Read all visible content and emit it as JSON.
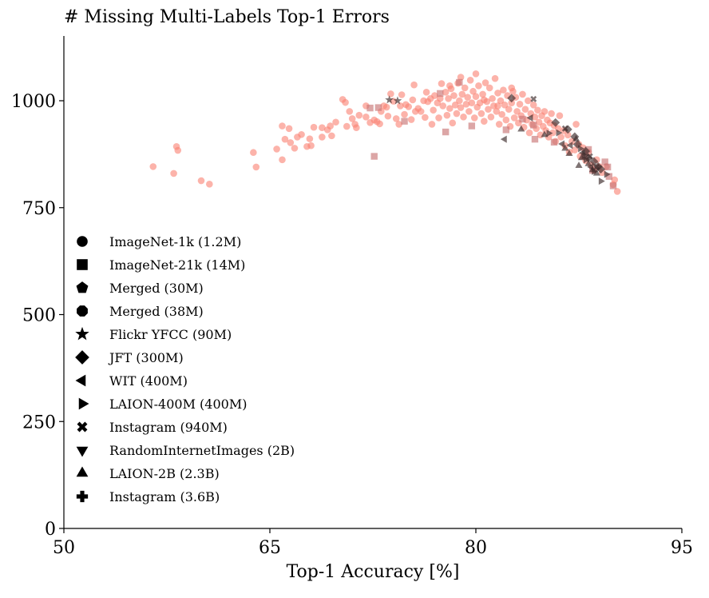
{
  "chart_data": {
    "type": "scatter",
    "title": "# Missing Multi-Labels Top-1 Errors",
    "xlabel": "Top-1 Accuracy [%]",
    "ylabel": "",
    "xlim": [
      50,
      95
    ],
    "ylim": [
      0,
      1150
    ],
    "xticks": [
      50,
      65,
      80,
      95
    ],
    "yticks": [
      0,
      250,
      500,
      750,
      1000
    ],
    "grid": false,
    "legend_position": "lower-left",
    "colors": {
      "imagenet": "#fa8072",
      "other": "#3a2a2a"
    },
    "legend": [
      {
        "label": "ImageNet-1k (1.2M)",
        "marker": "circle"
      },
      {
        "label": "ImageNet-21k (14M)",
        "marker": "square"
      },
      {
        "label": "Merged (30M)",
        "marker": "pentagon"
      },
      {
        "label": "Merged (38M)",
        "marker": "octagon"
      },
      {
        "label": "Flickr YFCC (90M)",
        "marker": "star"
      },
      {
        "label": "JFT (300M)",
        "marker": "diamond"
      },
      {
        "label": "WIT (400M)",
        "marker": "triangle-left"
      },
      {
        "label": "LAION-400M (400M)",
        "marker": "triangle-right"
      },
      {
        "label": "Instagram (940M)",
        "marker": "x"
      },
      {
        "label": "RandomInternetImages (2B)",
        "marker": "triangle-down"
      },
      {
        "label": "LAION-2B (2.3B)",
        "marker": "triangle-up"
      },
      {
        "label": "Instagram (3.6B)",
        "marker": "plus"
      }
    ],
    "series": [
      {
        "marker": "circle",
        "color": "#fa8072",
        "points": [
          [
            56.5,
            846
          ],
          [
            58,
            830
          ],
          [
            58.2,
            893
          ],
          [
            58.3,
            884
          ],
          [
            60,
            813
          ],
          [
            60.6,
            805
          ],
          [
            63.8,
            879
          ],
          [
            64,
            845
          ],
          [
            65.5,
            887
          ],
          [
            65.9,
            941
          ],
          [
            65.9,
            862
          ],
          [
            66.1,
            910
          ],
          [
            66.4,
            935
          ],
          [
            66.5,
            902
          ],
          [
            66.8,
            889
          ],
          [
            67,
            915
          ],
          [
            67.3,
            921
          ],
          [
            67.7,
            893
          ],
          [
            67.9,
            911
          ],
          [
            68,
            895
          ],
          [
            68.2,
            938
          ],
          [
            68.8,
            937
          ],
          [
            68.8,
            915
          ],
          [
            69.2,
            932
          ],
          [
            69.4,
            941
          ],
          [
            69.5,
            918
          ],
          [
            69.8,
            950
          ],
          [
            70.3,
            1003
          ],
          [
            70.5,
            996
          ],
          [
            70.6,
            940
          ],
          [
            70.8,
            975
          ],
          [
            71,
            958
          ],
          [
            71.2,
            945
          ],
          [
            71.3,
            937
          ],
          [
            71.5,
            966
          ],
          [
            72,
            988
          ],
          [
            72,
            962
          ],
          [
            72.3,
            949
          ],
          [
            72.6,
            955
          ],
          [
            72.8,
            951
          ],
          [
            73,
            946
          ],
          [
            73.1,
            975
          ],
          [
            73.3,
            988
          ],
          [
            73.5,
            985
          ],
          [
            73.6,
            964
          ],
          [
            73.8,
            1016
          ],
          [
            74,
            999
          ],
          [
            74.2,
            958
          ],
          [
            74.4,
            945
          ],
          [
            74.5,
            988
          ],
          [
            74.6,
            1014
          ],
          [
            74.9,
            991
          ],
          [
            75.1,
            986
          ],
          [
            75.3,
            956
          ],
          [
            75.4,
            1002
          ],
          [
            75.5,
            1037
          ],
          [
            75.8,
            982
          ],
          [
            76,
            975
          ],
          [
            76.2,
            1000
          ],
          [
            76.3,
            961
          ],
          [
            76.5,
            998
          ],
          [
            76.7,
            1005
          ],
          [
            76.9,
            978
          ],
          [
            77,
            1012
          ],
          [
            77.2,
            995
          ],
          [
            77.3,
            960
          ],
          [
            77.5,
            1040
          ],
          [
            77.6,
            988
          ],
          [
            77.8,
            1020
          ],
          [
            77.9,
            966
          ],
          [
            78,
            1005
          ],
          [
            78.1,
            982
          ],
          [
            78.2,
            1028
          ],
          [
            78.3,
            948
          ],
          [
            78.4,
            1012
          ],
          [
            78.5,
            990
          ],
          [
            78.6,
            970
          ],
          [
            78.7,
            1041
          ],
          [
            78.8,
            1000
          ],
          [
            78.9,
            984
          ],
          [
            79,
            1015
          ],
          [
            79.1,
            962
          ],
          [
            79.2,
            1030
          ],
          [
            79.3,
            992
          ],
          [
            79.4,
            1008
          ],
          [
            79.5,
            975
          ],
          [
            79.6,
            1048
          ],
          [
            79.7,
            995
          ],
          [
            79.8,
            1022
          ],
          [
            79.9,
            960
          ],
          [
            80,
            1063
          ],
          [
            80,
            1010
          ],
          [
            80.1,
            985
          ],
          [
            80.2,
            1035
          ],
          [
            80.3,
            995
          ],
          [
            80.4,
            970
          ],
          [
            80.5,
            1015
          ],
          [
            80.6,
            952
          ],
          [
            80.7,
            1042
          ],
          [
            80.8,
            998
          ],
          [
            80.9,
            980
          ],
          [
            81,
            1030
          ],
          [
            81.1,
            962
          ],
          [
            81.2,
            1005
          ],
          [
            81.3,
            988
          ],
          [
            81.4,
            1052
          ],
          [
            81.5,
            975
          ],
          [
            81.6,
            1018
          ],
          [
            81.7,
            945
          ],
          [
            81.8,
            1000
          ],
          [
            81.9,
            968
          ],
          [
            82,
            1025
          ],
          [
            82.1,
            990
          ],
          [
            82.2,
            955
          ],
          [
            82.3,
            1012
          ],
          [
            82.4,
            980
          ],
          [
            82.5,
            940
          ],
          [
            82.6,
            995
          ],
          [
            82.7,
            1022
          ],
          [
            82.8,
            960
          ],
          [
            82.9,
            1008
          ],
          [
            83,
            975
          ],
          [
            83.1,
            948
          ],
          [
            83.2,
            992
          ],
          [
            83.3,
            965
          ],
          [
            83.4,
            1015
          ],
          [
            83.5,
            938
          ],
          [
            83.6,
            980
          ],
          [
            83.7,
            955
          ],
          [
            83.8,
            1000
          ],
          [
            83.9,
            925
          ],
          [
            84,
            970
          ],
          [
            84.1,
            945
          ],
          [
            84.2,
            990
          ],
          [
            84.3,
            962
          ],
          [
            84.4,
            935
          ],
          [
            84.5,
            978
          ],
          [
            84.6,
            950
          ],
          [
            84.7,
            920
          ],
          [
            84.8,
            965
          ],
          [
            84.9,
            940
          ],
          [
            85,
            975
          ],
          [
            85.1,
            930
          ],
          [
            85.2,
            955
          ],
          [
            85.3,
            915
          ],
          [
            85.4,
            948
          ],
          [
            85.5,
            970
          ],
          [
            85.6,
            925
          ],
          [
            85.7,
            942
          ],
          [
            85.8,
            905
          ],
          [
            86,
            935
          ],
          [
            86.1,
            965
          ],
          [
            86.2,
            915
          ],
          [
            86.4,
            930
          ],
          [
            86.5,
            895
          ],
          [
            86.7,
            920
          ],
          [
            86.8,
            880
          ],
          [
            87,
            905
          ],
          [
            87.2,
            885
          ],
          [
            87.3,
            945
          ],
          [
            87.5,
            898
          ],
          [
            87.6,
            870
          ],
          [
            87.8,
            890
          ],
          [
            88,
            860
          ],
          [
            88.2,
            880
          ],
          [
            88.4,
            850
          ],
          [
            88.6,
            838
          ],
          [
            88.8,
            862
          ],
          [
            89,
            846
          ],
          [
            89.2,
            832
          ],
          [
            89.5,
            846
          ],
          [
            90,
            804
          ],
          [
            90.3,
            788
          ],
          [
            90.1,
            815
          ],
          [
            76.4,
            1020
          ],
          [
            77.4,
            1005
          ],
          [
            78.1,
            1035
          ],
          [
            78.9,
            1055
          ],
          [
            80.6,
            1002
          ],
          [
            81.6,
            988
          ],
          [
            82.6,
            1030
          ],
          [
            76.8,
            945
          ],
          [
            75.6,
            975
          ],
          [
            74.8,
            968
          ]
        ]
      },
      {
        "marker": "square",
        "color": "#c97777",
        "points": [
          [
            72.9,
            984
          ],
          [
            72.3,
            983
          ],
          [
            74.8,
            952
          ],
          [
            77.4,
            1017
          ],
          [
            78.8,
            1043
          ],
          [
            77.8,
            927
          ],
          [
            79.7,
            941
          ],
          [
            82.2,
            932
          ],
          [
            83.4,
            957
          ],
          [
            84.2,
            943
          ],
          [
            84.3,
            910
          ],
          [
            85.7,
            903
          ],
          [
            87.9,
            871
          ],
          [
            88.2,
            886
          ],
          [
            88.5,
            837
          ],
          [
            89.4,
            857
          ],
          [
            89.6,
            845
          ],
          [
            90,
            801
          ],
          [
            89.7,
            823
          ],
          [
            72.6,
            870
          ]
        ]
      },
      {
        "marker": "triangle-up",
        "color": "#3a2a2a",
        "points": [
          [
            83.3,
            933
          ],
          [
            85,
            920
          ],
          [
            86.8,
            876
          ],
          [
            87.3,
            910
          ],
          [
            87.7,
            866
          ],
          [
            88.2,
            852
          ],
          [
            88.5,
            838
          ],
          [
            88.8,
            830
          ],
          [
            87.5,
            848
          ],
          [
            86.5,
            888
          ]
        ]
      },
      {
        "marker": "triangle-right",
        "color": "#3a2a2a",
        "points": [
          [
            85.3,
            924
          ],
          [
            86,
            925
          ],
          [
            87.6,
            888
          ],
          [
            88,
            862
          ],
          [
            88.6,
            835
          ],
          [
            89.1,
            812
          ],
          [
            89.5,
            828
          ],
          [
            87.9,
            872
          ]
        ]
      },
      {
        "marker": "triangle-left",
        "color": "#3a2a2a",
        "points": [
          [
            82.1,
            910
          ],
          [
            84,
            960
          ],
          [
            86.3,
            899
          ],
          [
            87.8,
            878
          ],
          [
            88.4,
            845
          ],
          [
            86.9,
            896
          ]
        ]
      },
      {
        "marker": "diamond",
        "color": "#3a2a2a",
        "points": [
          [
            82.6,
            1006
          ],
          [
            85.8,
            949
          ],
          [
            86.7,
            933
          ],
          [
            87.2,
            916
          ],
          [
            88,
            882
          ],
          [
            88.2,
            866
          ],
          [
            88.6,
            858
          ],
          [
            88.9,
            846
          ],
          [
            89.1,
            840
          ],
          [
            87.4,
            898
          ]
        ]
      },
      {
        "marker": "x",
        "color": "#3a2a2a",
        "points": [
          [
            84.2,
            1004
          ],
          [
            86.5,
            935
          ],
          [
            88.3,
            870
          ],
          [
            88.8,
            845
          ]
        ]
      },
      {
        "marker": "star",
        "color": "#3a2a2a",
        "points": [
          [
            73.7,
            1002
          ],
          [
            74.3,
            1000
          ]
        ]
      }
    ]
  }
}
